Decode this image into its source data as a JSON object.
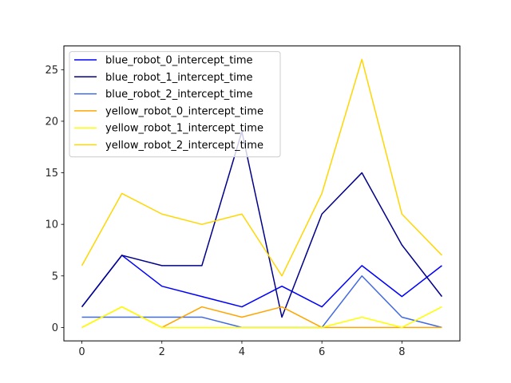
{
  "chart_data": {
    "type": "line",
    "x": [
      0,
      1,
      2,
      3,
      4,
      5,
      6,
      7,
      8,
      9
    ],
    "xlim": [
      -0.45,
      9.45
    ],
    "ylim": [
      -1.3,
      27.3
    ],
    "x_ticks": [
      0,
      2,
      4,
      6,
      8
    ],
    "y_ticks": [
      0,
      5,
      10,
      15,
      20,
      25
    ],
    "grid": false,
    "legend_position": "upper-left",
    "title": "",
    "xlabel": "",
    "ylabel": "",
    "series": [
      {
        "name": "blue_robot_0_intercept_time",
        "color": "#0000ff",
        "values": [
          2,
          7,
          4,
          3,
          2,
          4,
          2,
          6,
          3,
          6
        ]
      },
      {
        "name": "blue_robot_1_intercept_time",
        "color": "#00008b",
        "values": [
          2,
          7,
          6,
          6,
          19,
          1,
          11,
          15,
          8,
          3
        ]
      },
      {
        "name": "blue_robot_2_intercept_time",
        "color": "#4169e1",
        "values": [
          1,
          1,
          1,
          1,
          0,
          0,
          0,
          5,
          1,
          0
        ]
      },
      {
        "name": "yellow_robot_0_intercept_time",
        "color": "#ffa500",
        "values": [
          0,
          2,
          0,
          2,
          1,
          2,
          0,
          0,
          0,
          0
        ]
      },
      {
        "name": "yellow_robot_1_intercept_time",
        "color": "#ffff00",
        "values": [
          0,
          2,
          0,
          0,
          0,
          0,
          0,
          1,
          0,
          2
        ]
      },
      {
        "name": "yellow_robot_2_intercept_time",
        "color": "#ffd700",
        "values": [
          6,
          13,
          11,
          10,
          11,
          5,
          13,
          26,
          11,
          7
        ]
      }
    ]
  }
}
